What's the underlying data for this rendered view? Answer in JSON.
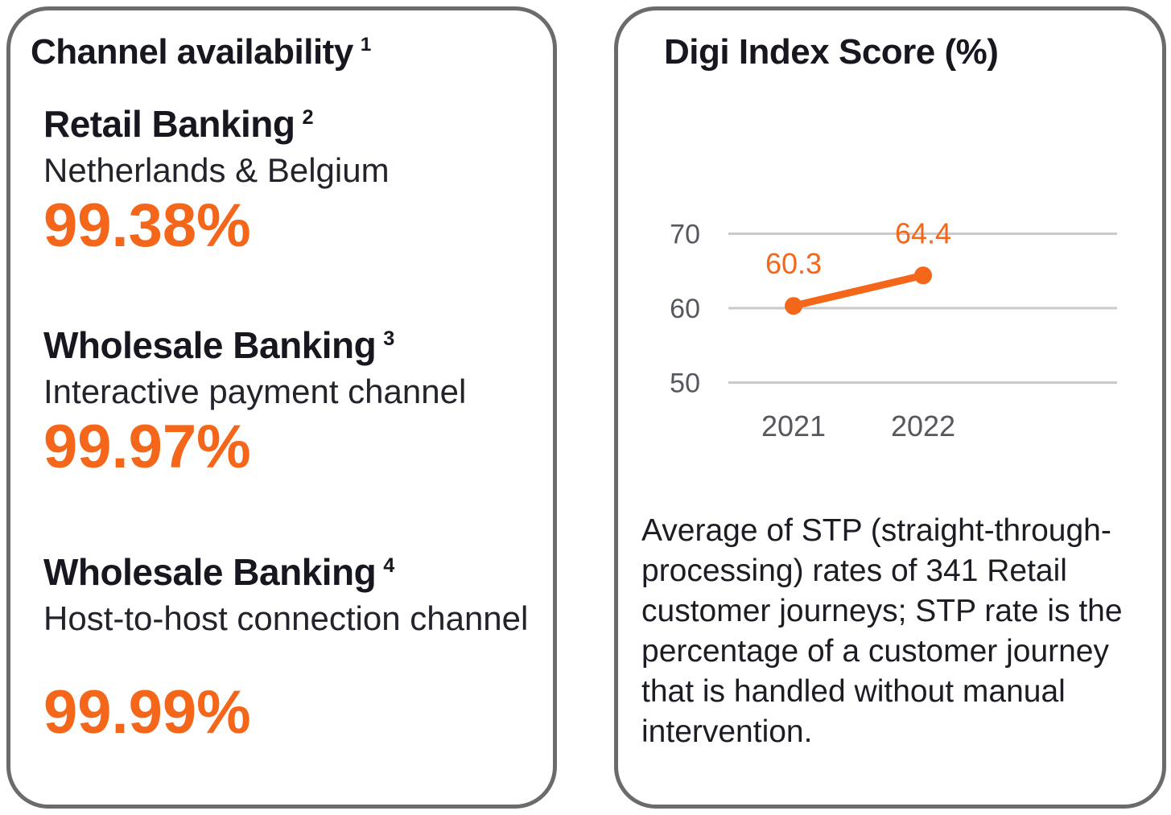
{
  "colors": {
    "accent": "#f4661a",
    "text_dark": "#17171f",
    "axis_gray": "#55585f",
    "gridline_gray": "#cacaca",
    "card_border_gray": "#6b6b6b"
  },
  "cards": {
    "channel_availability": {
      "title": "Channel availability",
      "title_footnote": "1",
      "metrics": [
        {
          "label": "Retail Banking",
          "footnote": "2",
          "sublabel": "Netherlands & Belgium",
          "value": "99.38%"
        },
        {
          "label": "Wholesale Banking",
          "footnote": "3",
          "sublabel": "Interactive payment channel",
          "value": "99.97%"
        },
        {
          "label": "Wholesale Banking",
          "footnote": "4",
          "sublabel": "Host-to-host connection channel",
          "value": "99.99%"
        }
      ]
    },
    "digi_index": {
      "title": "Digi Index Score (%)",
      "description": "Average of STP (straight-through-processing) rates of 341 Retail customer journeys; STP rate is the percentage of a customer journey that is handled without manual intervention."
    }
  },
  "chart_data": {
    "type": "line",
    "title": "Digi Index Score (%)",
    "categories": [
      "2021",
      "2022"
    ],
    "values": [
      60.3,
      64.4
    ],
    "data_labels": [
      "60.3",
      "64.4"
    ],
    "yticks": [
      70,
      60,
      50
    ],
    "ylim": [
      45,
      73
    ],
    "grid": true,
    "legend": false,
    "line_color": "#f4661a",
    "marker": "circle"
  }
}
